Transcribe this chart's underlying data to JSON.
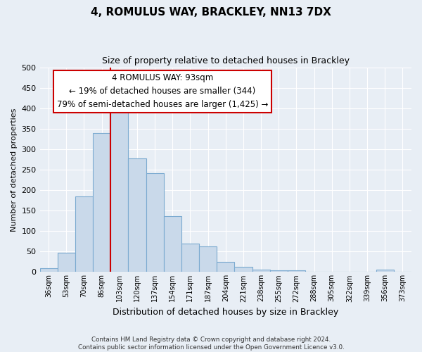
{
  "title": "4, ROMULUS WAY, BRACKLEY, NN13 7DX",
  "subtitle": "Size of property relative to detached houses in Brackley",
  "xlabel": "Distribution of detached houses by size in Brackley",
  "ylabel": "Number of detached properties",
  "footer_line1": "Contains HM Land Registry data © Crown copyright and database right 2024.",
  "footer_line2": "Contains public sector information licensed under the Open Government Licence v3.0.",
  "categories": [
    "36sqm",
    "53sqm",
    "70sqm",
    "86sqm",
    "103sqm",
    "120sqm",
    "137sqm",
    "154sqm",
    "171sqm",
    "187sqm",
    "204sqm",
    "221sqm",
    "238sqm",
    "255sqm",
    "272sqm",
    "288sqm",
    "305sqm",
    "322sqm",
    "339sqm",
    "356sqm",
    "373sqm"
  ],
  "values": [
    10,
    47,
    185,
    340,
    397,
    277,
    242,
    137,
    70,
    62,
    25,
    13,
    5,
    4,
    4,
    0,
    0,
    0,
    0,
    5,
    0
  ],
  "bar_color": "#c9d9ea",
  "bar_edge_color": "#7baad0",
  "ylim": [
    0,
    500
  ],
  "yticks": [
    0,
    50,
    100,
    150,
    200,
    250,
    300,
    350,
    400,
    450,
    500
  ],
  "vline_x_index": 4,
  "vline_color": "#cc0000",
  "annotation_title": "4 ROMULUS WAY: 93sqm",
  "annotation_line1": "← 19% of detached houses are smaller (344)",
  "annotation_line2": "79% of semi-detached houses are larger (1,425) →",
  "annotation_box_color": "#ffffff",
  "annotation_box_edge_color": "#cc0000",
  "bg_color": "#e8eef5",
  "grid_color": "#ffffff",
  "title_fontsize": 11,
  "subtitle_fontsize": 9,
  "ylabel_fontsize": 8,
  "xlabel_fontsize": 9
}
